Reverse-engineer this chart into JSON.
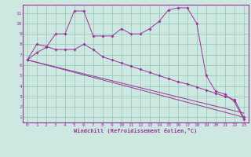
{
  "bg_color": "#cce8e0",
  "line_color": "#993399",
  "grid_color": "#99ccbb",
  "xlabel": "Windchill (Refroidissement éolien,°C)",
  "xlim": [
    -0.5,
    23.5
  ],
  "ylim": [
    0.5,
    11.8
  ],
  "xticks": [
    0,
    1,
    2,
    3,
    4,
    5,
    6,
    7,
    8,
    9,
    10,
    11,
    12,
    13,
    14,
    15,
    16,
    17,
    18,
    19,
    20,
    21,
    22,
    23
  ],
  "yticks": [
    1,
    2,
    3,
    4,
    5,
    6,
    7,
    8,
    9,
    10,
    11
  ],
  "line1_x": [
    0,
    1,
    2,
    3,
    4,
    5,
    6,
    7,
    8,
    9,
    10,
    11,
    12,
    13,
    14,
    15,
    16,
    17,
    18,
    19,
    20,
    21,
    22,
    23
  ],
  "line1_y": [
    6.5,
    7.2,
    7.7,
    9.0,
    9.0,
    11.2,
    11.2,
    8.8,
    8.8,
    8.8,
    9.5,
    9.0,
    9.0,
    9.5,
    10.2,
    11.3,
    11.5,
    11.5,
    10.0,
    5.0,
    3.5,
    3.2,
    2.5,
    0.8
  ],
  "line2_x": [
    0,
    1,
    2,
    3,
    4,
    5,
    6,
    7,
    8,
    9,
    10,
    11,
    12,
    13,
    14,
    15,
    16,
    17,
    18,
    19,
    20,
    21,
    22,
    23
  ],
  "line2_y": [
    6.5,
    8.0,
    7.8,
    7.5,
    7.5,
    7.5,
    8.0,
    7.5,
    6.8,
    6.5,
    6.2,
    5.9,
    5.6,
    5.3,
    5.0,
    4.7,
    4.4,
    4.2,
    3.9,
    3.6,
    3.3,
    3.0,
    2.7,
    1.0
  ],
  "line3_x": [
    0,
    23
  ],
  "line3_y": [
    6.5,
    1.0
  ],
  "line4_x": [
    0,
    23
  ],
  "line4_y": [
    6.5,
    1.4
  ]
}
